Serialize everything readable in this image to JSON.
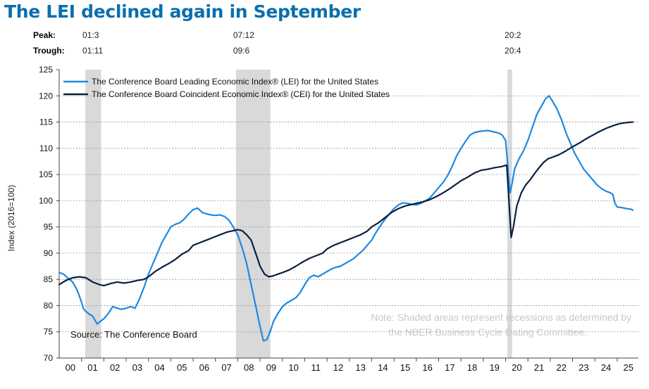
{
  "page_title": "The LEI declined again in September",
  "colors": {
    "title": "#0a6fad",
    "lei": "#1e88e5",
    "cei": "#0c1f3f",
    "recession": "#d9d9d9",
    "note": "#c8c8c8"
  },
  "chart_data": {
    "type": "line",
    "title": "The LEI declined again in September",
    "ylabel": "Index (2016=100)",
    "xlabel": "",
    "xlim": [
      2000,
      2025.95
    ],
    "ylim": [
      70,
      125
    ],
    "y_ticks": [
      70,
      75,
      80,
      85,
      90,
      95,
      100,
      105,
      110,
      115,
      120,
      125
    ],
    "x_tick_labels": [
      "00",
      "01",
      "02",
      "03",
      "04",
      "05",
      "06",
      "07",
      "08",
      "09",
      "10",
      "11",
      "12",
      "13",
      "14",
      "15",
      "16",
      "17",
      "18",
      "19",
      "20",
      "21",
      "22",
      "23",
      "24",
      "25"
    ],
    "grid": "horizontal-dashed",
    "legend_position": "top-left",
    "cycle_labels": {
      "peak_label": "Peak:",
      "trough_label": "Trough:"
    },
    "recessions": [
      {
        "peak": "01:3",
        "trough": "01:11",
        "start": 2001.17,
        "end": 2001.88
      },
      {
        "peak": "07:12",
        "trough": "09:6",
        "start": 2007.92,
        "end": 2009.46
      },
      {
        "peak": "20:2",
        "trough": "20:4",
        "start": 2020.08,
        "end": 2020.29
      }
    ],
    "series": [
      {
        "name": "The Conference Board Leading Economic Index® (LEI) for the United States",
        "color": "#1e88e5",
        "points": [
          [
            2000.0,
            86.3
          ],
          [
            2000.2,
            86.0
          ],
          [
            2000.4,
            85.2
          ],
          [
            2000.6,
            84.5
          ],
          [
            2000.8,
            83.0
          ],
          [
            2000.95,
            81.3
          ],
          [
            2001.1,
            79.3
          ],
          [
            2001.3,
            78.5
          ],
          [
            2001.5,
            78.0
          ],
          [
            2001.7,
            76.5
          ],
          [
            2001.85,
            77.0
          ],
          [
            2002.0,
            77.5
          ],
          [
            2002.2,
            78.5
          ],
          [
            2002.4,
            79.8
          ],
          [
            2002.6,
            79.5
          ],
          [
            2002.8,
            79.3
          ],
          [
            2003.0,
            79.5
          ],
          [
            2003.2,
            79.8
          ],
          [
            2003.4,
            79.5
          ],
          [
            2003.6,
            81.3
          ],
          [
            2003.8,
            83.5
          ],
          [
            2004.0,
            86.0
          ],
          [
            2004.2,
            88.0
          ],
          [
            2004.4,
            90.0
          ],
          [
            2004.6,
            92.0
          ],
          [
            2004.8,
            93.5
          ],
          [
            2005.0,
            95.0
          ],
          [
            2005.2,
            95.5
          ],
          [
            2005.4,
            95.8
          ],
          [
            2005.6,
            96.5
          ],
          [
            2005.8,
            97.5
          ],
          [
            2006.0,
            98.3
          ],
          [
            2006.2,
            98.6
          ],
          [
            2006.4,
            97.8
          ],
          [
            2006.6,
            97.5
          ],
          [
            2006.8,
            97.3
          ],
          [
            2007.0,
            97.2
          ],
          [
            2007.2,
            97.3
          ],
          [
            2007.4,
            97.0
          ],
          [
            2007.6,
            96.3
          ],
          [
            2007.8,
            95.0
          ],
          [
            2008.0,
            93.5
          ],
          [
            2008.2,
            91.0
          ],
          [
            2008.4,
            88.0
          ],
          [
            2008.6,
            84.0
          ],
          [
            2008.8,
            80.0
          ],
          [
            2009.0,
            76.0
          ],
          [
            2009.15,
            73.3
          ],
          [
            2009.3,
            73.5
          ],
          [
            2009.45,
            75.0
          ],
          [
            2009.6,
            77.0
          ],
          [
            2009.8,
            78.5
          ],
          [
            2010.0,
            79.8
          ],
          [
            2010.2,
            80.5
          ],
          [
            2010.4,
            81.0
          ],
          [
            2010.6,
            81.5
          ],
          [
            2010.8,
            82.5
          ],
          [
            2011.0,
            84.0
          ],
          [
            2011.2,
            85.3
          ],
          [
            2011.4,
            85.8
          ],
          [
            2011.6,
            85.5
          ],
          [
            2011.8,
            86.0
          ],
          [
            2012.0,
            86.5
          ],
          [
            2012.2,
            87.0
          ],
          [
            2012.4,
            87.3
          ],
          [
            2012.6,
            87.5
          ],
          [
            2012.8,
            88.0
          ],
          [
            2013.0,
            88.5
          ],
          [
            2013.2,
            89.0
          ],
          [
            2013.4,
            89.8
          ],
          [
            2013.6,
            90.5
          ],
          [
            2013.8,
            91.5
          ],
          [
            2014.0,
            92.5
          ],
          [
            2014.2,
            94.0
          ],
          [
            2014.4,
            95.3
          ],
          [
            2014.6,
            96.5
          ],
          [
            2014.8,
            97.5
          ],
          [
            2015.0,
            98.5
          ],
          [
            2015.2,
            99.2
          ],
          [
            2015.4,
            99.6
          ],
          [
            2015.6,
            99.5
          ],
          [
            2015.8,
            99.3
          ],
          [
            2016.0,
            99.2
          ],
          [
            2016.2,
            99.5
          ],
          [
            2016.4,
            100.0
          ],
          [
            2016.6,
            100.5
          ],
          [
            2016.8,
            101.5
          ],
          [
            2017.0,
            102.5
          ],
          [
            2017.2,
            103.5
          ],
          [
            2017.4,
            104.8
          ],
          [
            2017.6,
            106.5
          ],
          [
            2017.8,
            108.5
          ],
          [
            2018.0,
            110.0
          ],
          [
            2018.2,
            111.3
          ],
          [
            2018.4,
            112.5
          ],
          [
            2018.6,
            113.0
          ],
          [
            2018.8,
            113.2
          ],
          [
            2019.0,
            113.3
          ],
          [
            2019.2,
            113.4
          ],
          [
            2019.4,
            113.2
          ],
          [
            2019.6,
            113.0
          ],
          [
            2019.75,
            112.8
          ],
          [
            2019.85,
            112.5
          ],
          [
            2020.0,
            111.5
          ],
          [
            2020.1,
            106.5
          ],
          [
            2020.2,
            101.5
          ],
          [
            2020.3,
            103.5
          ],
          [
            2020.4,
            106.0
          ],
          [
            2020.6,
            108.0
          ],
          [
            2020.8,
            109.5
          ],
          [
            2021.0,
            111.5
          ],
          [
            2021.2,
            114.0
          ],
          [
            2021.4,
            116.5
          ],
          [
            2021.6,
            118.0
          ],
          [
            2021.8,
            119.5
          ],
          [
            2021.95,
            120.0
          ],
          [
            2022.1,
            119.0
          ],
          [
            2022.3,
            117.5
          ],
          [
            2022.5,
            115.5
          ],
          [
            2022.7,
            113.0
          ],
          [
            2022.9,
            111.0
          ],
          [
            2023.1,
            109.0
          ],
          [
            2023.3,
            107.5
          ],
          [
            2023.5,
            106.0
          ],
          [
            2023.7,
            105.0
          ],
          [
            2023.9,
            104.0
          ],
          [
            2024.1,
            103.0
          ],
          [
            2024.3,
            102.3
          ],
          [
            2024.5,
            101.8
          ],
          [
            2024.7,
            101.5
          ],
          [
            2024.8,
            101.2
          ],
          [
            2024.9,
            99.5
          ],
          [
            2025.0,
            98.8
          ],
          [
            2025.2,
            98.7
          ],
          [
            2025.4,
            98.5
          ],
          [
            2025.6,
            98.4
          ],
          [
            2025.7,
            98.2
          ]
        ]
      },
      {
        "name": "The Conference Board Coincident Economic Index® (CEI) for the United States",
        "color": "#0c1f3f",
        "points": [
          [
            2000.0,
            84.0
          ],
          [
            2000.3,
            84.8
          ],
          [
            2000.6,
            85.3
          ],
          [
            2000.9,
            85.5
          ],
          [
            2001.2,
            85.3
          ],
          [
            2001.5,
            84.5
          ],
          [
            2001.8,
            84.0
          ],
          [
            2002.0,
            83.8
          ],
          [
            2002.3,
            84.2
          ],
          [
            2002.6,
            84.5
          ],
          [
            2002.9,
            84.3
          ],
          [
            2003.2,
            84.5
          ],
          [
            2003.5,
            84.8
          ],
          [
            2003.8,
            85.0
          ],
          [
            2004.0,
            85.5
          ],
          [
            2004.3,
            86.5
          ],
          [
            2004.6,
            87.3
          ],
          [
            2004.9,
            88.0
          ],
          [
            2005.2,
            88.8
          ],
          [
            2005.5,
            89.8
          ],
          [
            2005.8,
            90.5
          ],
          [
            2006.0,
            91.5
          ],
          [
            2006.3,
            92.0
          ],
          [
            2006.6,
            92.5
          ],
          [
            2006.9,
            93.0
          ],
          [
            2007.2,
            93.5
          ],
          [
            2007.5,
            94.0
          ],
          [
            2007.8,
            94.3
          ],
          [
            2008.0,
            94.5
          ],
          [
            2008.2,
            94.3
          ],
          [
            2008.4,
            93.5
          ],
          [
            2008.6,
            92.5
          ],
          [
            2008.8,
            90.0
          ],
          [
            2009.0,
            87.5
          ],
          [
            2009.2,
            86.0
          ],
          [
            2009.4,
            85.5
          ],
          [
            2009.6,
            85.7
          ],
          [
            2009.8,
            86.0
          ],
          [
            2010.0,
            86.3
          ],
          [
            2010.3,
            86.8
          ],
          [
            2010.6,
            87.5
          ],
          [
            2010.9,
            88.3
          ],
          [
            2011.2,
            89.0
          ],
          [
            2011.5,
            89.5
          ],
          [
            2011.8,
            90.0
          ],
          [
            2012.0,
            90.8
          ],
          [
            2012.3,
            91.5
          ],
          [
            2012.6,
            92.0
          ],
          [
            2012.9,
            92.5
          ],
          [
            2013.2,
            93.0
          ],
          [
            2013.5,
            93.5
          ],
          [
            2013.8,
            94.2
          ],
          [
            2014.0,
            95.0
          ],
          [
            2014.3,
            95.8
          ],
          [
            2014.6,
            96.8
          ],
          [
            2014.9,
            97.8
          ],
          [
            2015.2,
            98.5
          ],
          [
            2015.5,
            99.0
          ],
          [
            2015.8,
            99.3
          ],
          [
            2016.0,
            99.5
          ],
          [
            2016.3,
            99.8
          ],
          [
            2016.6,
            100.2
          ],
          [
            2016.9,
            100.8
          ],
          [
            2017.2,
            101.5
          ],
          [
            2017.5,
            102.3
          ],
          [
            2017.8,
            103.2
          ],
          [
            2018.0,
            103.8
          ],
          [
            2018.3,
            104.5
          ],
          [
            2018.6,
            105.3
          ],
          [
            2018.9,
            105.8
          ],
          [
            2019.2,
            106.0
          ],
          [
            2019.5,
            106.3
          ],
          [
            2019.8,
            106.5
          ],
          [
            2020.05,
            106.8
          ],
          [
            2020.15,
            100.0
          ],
          [
            2020.25,
            93.0
          ],
          [
            2020.35,
            95.0
          ],
          [
            2020.5,
            99.0
          ],
          [
            2020.7,
            101.5
          ],
          [
            2020.9,
            103.0
          ],
          [
            2021.1,
            104.0
          ],
          [
            2021.3,
            105.2
          ],
          [
            2021.5,
            106.3
          ],
          [
            2021.7,
            107.3
          ],
          [
            2021.9,
            108.0
          ],
          [
            2022.1,
            108.3
          ],
          [
            2022.4,
            108.8
          ],
          [
            2022.7,
            109.5
          ],
          [
            2023.0,
            110.3
          ],
          [
            2023.3,
            111.0
          ],
          [
            2023.6,
            111.8
          ],
          [
            2023.9,
            112.5
          ],
          [
            2024.2,
            113.2
          ],
          [
            2024.5,
            113.8
          ],
          [
            2024.8,
            114.3
          ],
          [
            2025.1,
            114.7
          ],
          [
            2025.4,
            114.9
          ],
          [
            2025.7,
            115.0
          ]
        ]
      }
    ],
    "source": "Source: The Conference Board",
    "note_line1": "Note: Shaded areas represent recessions as determined by",
    "note_line2": "the NBER Business Cycle Dating Committee."
  }
}
